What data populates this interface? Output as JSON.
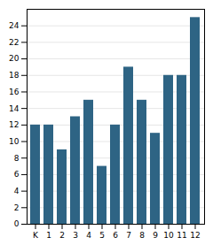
{
  "chart_data": {
    "type": "bar",
    "categories": [
      "K",
      "1",
      "2",
      "3",
      "4",
      "5",
      "6",
      "7",
      "8",
      "9",
      "10",
      "11",
      "12"
    ],
    "values": [
      12,
      12,
      9,
      13,
      15,
      7,
      12,
      19,
      15,
      11,
      18,
      18,
      25
    ],
    "color": "#2e6484",
    "ylim": [
      0,
      26
    ],
    "yticks": [
      0,
      2,
      4,
      6,
      8,
      10,
      12,
      14,
      16,
      18,
      20,
      22,
      24
    ],
    "grid": true
  }
}
